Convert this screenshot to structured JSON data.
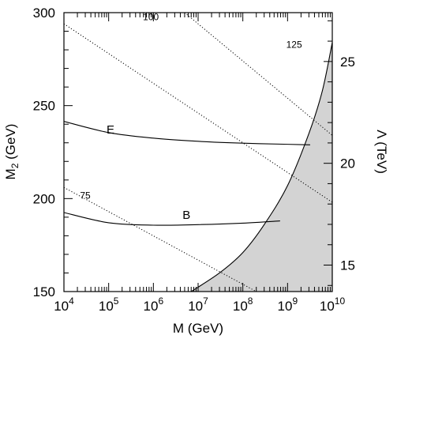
{
  "chart_data": {
    "type": "line",
    "xlabel": "M (GeV)",
    "ylabel_main": "M",
    "ylabel_sub": "2",
    "ylabel_unit": " (GeV)",
    "y2label": "Λ (TeV)",
    "x_scale": "log",
    "xlim": [
      10000,
      10000000000
    ],
    "ylim": [
      150,
      300
    ],
    "y2lim": [
      13.7,
      27.4
    ],
    "x_ticks": [
      {
        "base": "10",
        "exp": "4",
        "value": 10000
      },
      {
        "base": "10",
        "exp": "5",
        "value": 100000
      },
      {
        "base": "10",
        "exp": "6",
        "value": 1000000
      },
      {
        "base": "10",
        "exp": "7",
        "value": 10000000
      },
      {
        "base": "10",
        "exp": "8",
        "value": 100000000
      },
      {
        "base": "10",
        "exp": "9",
        "value": 1000000000
      },
      {
        "base": "10",
        "exp": "10",
        "value": 10000000000
      }
    ],
    "y_ticks": [
      "150",
      "200",
      "250",
      "300"
    ],
    "y2_ticks": [
      "15",
      "20",
      "25"
    ],
    "series": [
      {
        "name": "E",
        "style": "solid",
        "x": [
          10000,
          100000,
          1000000,
          10000000,
          100000000,
          1000000000,
          3200000000
        ],
        "y": [
          241.5,
          235.5,
          232.5,
          230.8,
          229.8,
          229.2,
          228.9
        ]
      },
      {
        "name": "B",
        "style": "solid",
        "x": [
          10000,
          100000,
          1000000,
          10000000,
          100000000,
          680000000
        ],
        "y": [
          192.5,
          187,
          185.7,
          186,
          186.8,
          188
        ]
      }
    ],
    "contours": [
      {
        "label": "75",
        "style": "dotted",
        "x": [
          10000,
          200000000
        ],
        "y": [
          206,
          150
        ]
      },
      {
        "label": "100",
        "style": "dotted",
        "x": [
          10000,
          10000000000
        ],
        "y": [
          294,
          198
        ]
      },
      {
        "label": "125",
        "style": "dotted",
        "x": [
          5000000,
          10000000000
        ],
        "y": [
          300,
          234
        ]
      }
    ],
    "excluded_region": {
      "fill": "#d3d3d3",
      "boundary_x": [
        7000000,
        30000000,
        100000000,
        300000000,
        1000000000,
        3000000000,
        6000000000,
        10000000000
      ],
      "boundary_y": [
        150,
        160,
        171,
        186,
        207,
        235,
        258,
        284
      ]
    },
    "curve_labels": [
      {
        "text": "E",
        "x": 110000,
        "y": 235
      },
      {
        "text": "B",
        "x": 5500000,
        "y": 189
      },
      {
        "text": "75",
        "x": 30000,
        "y": 200
      },
      {
        "text": "100",
        "x": 880000,
        "y": 296
      },
      {
        "text": "125",
        "x": 1400000000,
        "y": 281
      }
    ],
    "grid": false,
    "legend": "none"
  }
}
